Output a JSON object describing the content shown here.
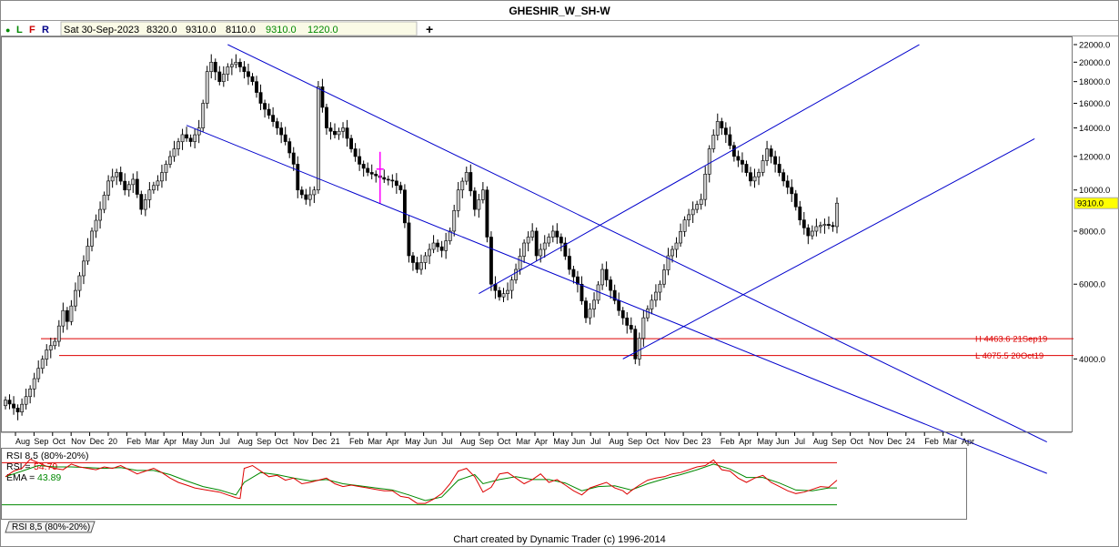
{
  "title": "GHESHIR_W_SH-W",
  "toolbar": {
    "dot_glyph": "●",
    "letters": [
      "L",
      "F",
      "R"
    ],
    "date": "Sat 30-Sep-2023",
    "open": "8320.0",
    "high": "9310.0",
    "low": "8110.0",
    "close": "9310.0",
    "change": "1220.0",
    "plus_glyph": "+"
  },
  "footer_credit": "Chart created by Dynamic Trader  (c) 1996-2014",
  "indicator_tab": "RSI 8,5 (80%-20%)",
  "colors": {
    "channel_lines": "#0000cc",
    "hilo_lines": "#dd0000",
    "up_candle": "#c8c8c8",
    "down_candle": "#000000",
    "rsi_line": "#dd0000",
    "ema_line": "#008800",
    "last_price_box": "#ffff00",
    "marker": "#ff00ff"
  },
  "chart_data": {
    "type": "candlestick",
    "scale": "log",
    "y_ticks": [
      "22000.0",
      "20000.0",
      "18000.0",
      "16000.0",
      "14000.0",
      "12000.0",
      "10000.0",
      "8000.0",
      "6000.0",
      "4000.0"
    ],
    "y_tick_values": [
      22000,
      20000,
      18000,
      16000,
      14000,
      12000,
      10000,
      8000,
      6000,
      4000
    ],
    "ylim": [
      2700,
      23000
    ],
    "last_price": {
      "label": "9310.0",
      "value": 9310
    },
    "x_ticks": [
      "Aug",
      "Sep",
      "Oct",
      "Nov",
      "Dec",
      "20",
      "Feb",
      "Mar",
      "Apr",
      "May",
      "Jun",
      "Jul",
      "Aug",
      "Sep",
      "Oct",
      "Nov",
      "Dec",
      "21",
      "Feb",
      "Mar",
      "Apr",
      "May",
      "Jun",
      "Jul",
      "Aug",
      "Sep",
      "Oct",
      "Mar",
      "Apr",
      "May",
      "Jun",
      "Jul",
      "Aug",
      "Sep",
      "Oct",
      "Nov",
      "Dec",
      "23",
      "Feb",
      "Apr",
      "May",
      "Jun",
      "Jul",
      "Aug",
      "Sep",
      "Oct",
      "Nov",
      "Dec",
      "24",
      "Feb",
      "Mar",
      "Apr"
    ],
    "hilo_lines": [
      {
        "label": "H 4463.6 21Sep19",
        "value": 4463.6
      },
      {
        "label": "L 4075.5 20Oct19",
        "value": 4075.5
      }
    ],
    "close_path": [
      [
        0,
        3200
      ],
      [
        3,
        3000
      ],
      [
        6,
        3400
      ],
      [
        8,
        3800
      ],
      [
        10,
        4200
      ],
      [
        12,
        4400
      ],
      [
        14,
        5200
      ],
      [
        15,
        4900
      ],
      [
        17,
        5800
      ],
      [
        19,
        6800
      ],
      [
        21,
        8000
      ],
      [
        23,
        9000
      ],
      [
        25,
        10500
      ],
      [
        27,
        11000
      ],
      [
        29,
        10000
      ],
      [
        31,
        10600
      ],
      [
        33,
        9000
      ],
      [
        35,
        10000
      ],
      [
        37,
        10500
      ],
      [
        39,
        11500
      ],
      [
        41,
        12500
      ],
      [
        43,
        13500
      ],
      [
        45,
        13000
      ],
      [
        47,
        14000
      ],
      [
        48,
        16000
      ],
      [
        49,
        19000
      ],
      [
        50,
        20000
      ],
      [
        52,
        18000
      ],
      [
        54,
        19500
      ],
      [
        56,
        20000
      ],
      [
        58,
        19000
      ],
      [
        60,
        18000
      ],
      [
        62,
        16000
      ],
      [
        64,
        15000
      ],
      [
        66,
        14000
      ],
      [
        68,
        13000
      ],
      [
        70,
        11500
      ],
      [
        71,
        10000
      ],
      [
        73,
        9500
      ],
      [
        75,
        10000
      ],
      [
        76,
        17500
      ],
      [
        78,
        14000
      ],
      [
        80,
        13500
      ],
      [
        82,
        14000
      ],
      [
        84,
        12500
      ],
      [
        86,
        11500
      ],
      [
        88,
        11000
      ],
      [
        90,
        10800
      ],
      [
        92,
        10600
      ],
      [
        94,
        10500
      ],
      [
        96,
        10000
      ],
      [
        98,
        7000
      ],
      [
        100,
        6500
      ],
      [
        102,
        7000
      ],
      [
        104,
        7500
      ],
      [
        106,
        7200
      ],
      [
        108,
        8000
      ],
      [
        110,
        10000
      ],
      [
        112,
        11000
      ],
      [
        114,
        9000
      ],
      [
        116,
        10000
      ],
      [
        118,
        6000
      ],
      [
        120,
        5600
      ],
      [
        122,
        5800
      ],
      [
        124,
        6500
      ],
      [
        126,
        7500
      ],
      [
        128,
        8000
      ],
      [
        129,
        7000
      ],
      [
        131,
        7500
      ],
      [
        133,
        8000
      ],
      [
        135,
        7500
      ],
      [
        137,
        6500
      ],
      [
        139,
        6000
      ],
      [
        141,
        5000
      ],
      [
        143,
        5500
      ],
      [
        145,
        6500
      ],
      [
        147,
        5800
      ],
      [
        149,
        5200
      ],
      [
        151,
        4800
      ],
      [
        152,
        4700
      ],
      [
        153,
        4000
      ],
      [
        155,
        5000
      ],
      [
        157,
        5500
      ],
      [
        159,
        6000
      ],
      [
        161,
        7000
      ],
      [
        163,
        7500
      ],
      [
        165,
        8500
      ],
      [
        167,
        9000
      ],
      [
        169,
        9500
      ],
      [
        171,
        12500
      ],
      [
        173,
        14500
      ],
      [
        175,
        13500
      ],
      [
        177,
        12000
      ],
      [
        179,
        11500
      ],
      [
        181,
        10500
      ],
      [
        183,
        11000
      ],
      [
        185,
        12500
      ],
      [
        187,
        11500
      ],
      [
        189,
        10500
      ],
      [
        191,
        9800
      ],
      [
        193,
        8500
      ],
      [
        195,
        7800
      ],
      [
        197,
        8200
      ],
      [
        199,
        8300
      ],
      [
        201,
        8200
      ],
      [
        202,
        9310
      ]
    ],
    "rsi_panel": {
      "series": [
        {
          "name": "RSI",
          "label": "RSI = ",
          "value": "54.79",
          "color": "#dd0000"
        },
        {
          "name": "EMA",
          "label": "EMA = ",
          "value": "43.89",
          "color": "#008800"
        }
      ],
      "upper_band": 80,
      "lower_band": 20,
      "rsi_path": [
        [
          0,
          60
        ],
        [
          2,
          68
        ],
        [
          4,
          72
        ],
        [
          6,
          85
        ],
        [
          8,
          80
        ],
        [
          10,
          75
        ],
        [
          12,
          72
        ],
        [
          14,
          70
        ],
        [
          16,
          78
        ],
        [
          18,
          74
        ],
        [
          20,
          72
        ],
        [
          22,
          70
        ],
        [
          24,
          74
        ],
        [
          26,
          72
        ],
        [
          28,
          76
        ],
        [
          30,
          70
        ],
        [
          32,
          64
        ],
        [
          34,
          68
        ],
        [
          36,
          72
        ],
        [
          38,
          66
        ],
        [
          40,
          58
        ],
        [
          42,
          52
        ],
        [
          44,
          48
        ],
        [
          46,
          44
        ],
        [
          48,
          42
        ],
        [
          50,
          40
        ],
        [
          52,
          38
        ],
        [
          54,
          34
        ],
        [
          56,
          30
        ],
        [
          57,
          29
        ],
        [
          58,
          72
        ],
        [
          60,
          76
        ],
        [
          62,
          68
        ],
        [
          64,
          60
        ],
        [
          66,
          62
        ],
        [
          68,
          55
        ],
        [
          70,
          58
        ],
        [
          72,
          50
        ],
        [
          74,
          52
        ],
        [
          76,
          55
        ],
        [
          78,
          58
        ],
        [
          80,
          50
        ],
        [
          82,
          46
        ],
        [
          84,
          48
        ],
        [
          86,
          46
        ],
        [
          88,
          44
        ],
        [
          90,
          42
        ],
        [
          92,
          40
        ],
        [
          94,
          40
        ],
        [
          96,
          32
        ],
        [
          98,
          30
        ],
        [
          100,
          22
        ],
        [
          102,
          22
        ],
        [
          104,
          28
        ],
        [
          106,
          36
        ],
        [
          108,
          50
        ],
        [
          110,
          68
        ],
        [
          112,
          72
        ],
        [
          114,
          60
        ],
        [
          116,
          38
        ],
        [
          118,
          45
        ],
        [
          120,
          64
        ],
        [
          122,
          66
        ],
        [
          124,
          58
        ],
        [
          126,
          50
        ],
        [
          128,
          56
        ],
        [
          130,
          64
        ],
        [
          132,
          52
        ],
        [
          134,
          56
        ],
        [
          136,
          48
        ],
        [
          138,
          40
        ],
        [
          140,
          34
        ],
        [
          142,
          44
        ],
        [
          144,
          48
        ],
        [
          146,
          52
        ],
        [
          148,
          44
        ],
        [
          150,
          40
        ],
        [
          151,
          35
        ],
        [
          152,
          40
        ],
        [
          154,
          48
        ],
        [
          156,
          55
        ],
        [
          158,
          58
        ],
        [
          160,
          60
        ],
        [
          162,
          64
        ],
        [
          164,
          66
        ],
        [
          166,
          70
        ],
        [
          168,
          74
        ],
        [
          170,
          76
        ],
        [
          172,
          84
        ],
        [
          174,
          70
        ],
        [
          176,
          68
        ],
        [
          178,
          58
        ],
        [
          180,
          52
        ],
        [
          182,
          58
        ],
        [
          184,
          62
        ],
        [
          186,
          52
        ],
        [
          188,
          46
        ],
        [
          190,
          40
        ],
        [
          192,
          36
        ],
        [
          194,
          38
        ],
        [
          196,
          42
        ],
        [
          198,
          46
        ],
        [
          200,
          45
        ],
        [
          202,
          55
        ]
      ],
      "ema_path": [
        [
          0,
          60
        ],
        [
          4,
          68
        ],
        [
          8,
          76
        ],
        [
          12,
          74
        ],
        [
          16,
          74
        ],
        [
          20,
          73
        ],
        [
          24,
          72
        ],
        [
          28,
          73
        ],
        [
          32,
          69
        ],
        [
          36,
          69
        ],
        [
          40,
          63
        ],
        [
          44,
          54
        ],
        [
          48,
          46
        ],
        [
          52,
          41
        ],
        [
          56,
          34
        ],
        [
          58,
          52
        ],
        [
          62,
          66
        ],
        [
          66,
          63
        ],
        [
          70,
          58
        ],
        [
          74,
          54
        ],
        [
          78,
          56
        ],
        [
          82,
          50
        ],
        [
          86,
          47
        ],
        [
          90,
          44
        ],
        [
          94,
          41
        ],
        [
          98,
          34
        ],
        [
          102,
          26
        ],
        [
          106,
          31
        ],
        [
          110,
          55
        ],
        [
          114,
          63
        ],
        [
          116,
          50
        ],
        [
          120,
          56
        ],
        [
          124,
          60
        ],
        [
          128,
          56
        ],
        [
          132,
          56
        ],
        [
          136,
          51
        ],
        [
          140,
          40
        ],
        [
          144,
          46
        ],
        [
          148,
          47
        ],
        [
          152,
          41
        ],
        [
          156,
          50
        ],
        [
          160,
          57
        ],
        [
          164,
          63
        ],
        [
          168,
          70
        ],
        [
          172,
          78
        ],
        [
          176,
          71
        ],
        [
          180,
          59
        ],
        [
          184,
          59
        ],
        [
          188,
          51
        ],
        [
          192,
          41
        ],
        [
          196,
          40
        ],
        [
          200,
          44
        ],
        [
          202,
          44
        ]
      ]
    }
  }
}
